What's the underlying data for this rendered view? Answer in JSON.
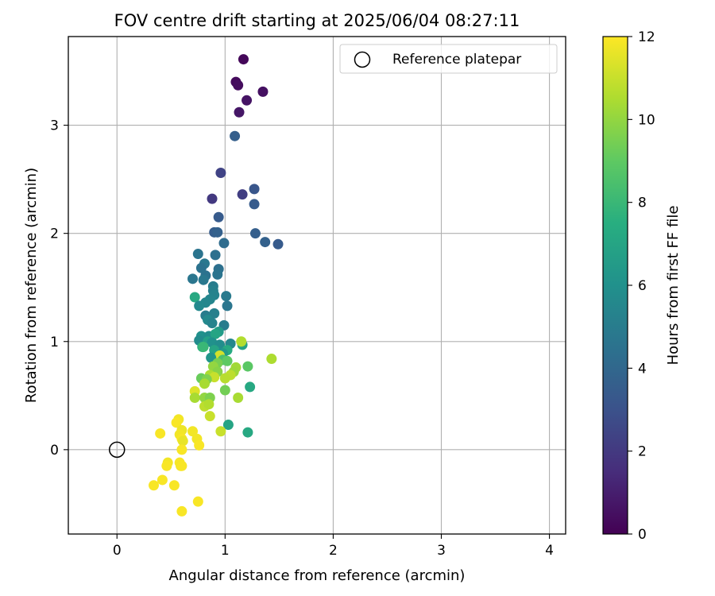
{
  "chart_data": {
    "type": "scatter",
    "title": "FOV centre drift starting at 2025/06/04 08:27:11",
    "xlabel": "Angular distance from reference (arcmin)",
    "ylabel": "Rotation from reference (arcmin)",
    "xlim": [
      -0.45,
      4.15
    ],
    "ylim": [
      -0.78,
      3.82
    ],
    "xticks": [
      0,
      1,
      2,
      3,
      4
    ],
    "yticks": [
      0,
      1,
      2,
      3
    ],
    "grid": true,
    "legend": {
      "position": "top-right",
      "entries": [
        "Reference platepar"
      ]
    },
    "reference_point": {
      "label": "Reference platepar",
      "x": 0,
      "y": 0
    },
    "colorbar": {
      "label": "Hours from first FF file",
      "colormap": "viridis",
      "min": 0,
      "max": 12,
      "ticks": [
        0,
        2,
        4,
        6,
        8,
        10,
        12
      ]
    },
    "points": [
      {
        "x": 1.17,
        "y": 3.61,
        "h": 0.2
      },
      {
        "x": 1.1,
        "y": 3.4,
        "h": 0.3
      },
      {
        "x": 1.12,
        "y": 3.37,
        "h": 0.4
      },
      {
        "x": 1.35,
        "y": 3.31,
        "h": 0.5
      },
      {
        "x": 1.2,
        "y": 3.23,
        "h": 0.6
      },
      {
        "x": 1.13,
        "y": 3.12,
        "h": 0.7
      },
      {
        "x": 1.09,
        "y": 2.9,
        "h": 3.6
      },
      {
        "x": 0.96,
        "y": 2.56,
        "h": 2.4
      },
      {
        "x": 1.27,
        "y": 2.41,
        "h": 3.2
      },
      {
        "x": 1.16,
        "y": 2.36,
        "h": 2.2
      },
      {
        "x": 0.88,
        "y": 2.32,
        "h": 2.0
      },
      {
        "x": 1.27,
        "y": 2.27,
        "h": 3.4
      },
      {
        "x": 0.94,
        "y": 2.15,
        "h": 3.4
      },
      {
        "x": 0.9,
        "y": 2.01,
        "h": 3.5
      },
      {
        "x": 0.93,
        "y": 2.01,
        "h": 3.7
      },
      {
        "x": 1.28,
        "y": 2.0,
        "h": 3.6
      },
      {
        "x": 1.37,
        "y": 1.92,
        "h": 3.7
      },
      {
        "x": 1.49,
        "y": 1.9,
        "h": 3.4
      },
      {
        "x": 0.99,
        "y": 1.91,
        "h": 4.2
      },
      {
        "x": 0.75,
        "y": 1.81,
        "h": 4.6
      },
      {
        "x": 0.91,
        "y": 1.8,
        "h": 4.4
      },
      {
        "x": 0.81,
        "y": 1.72,
        "h": 4.8
      },
      {
        "x": 0.78,
        "y": 1.68,
        "h": 4.5
      },
      {
        "x": 0.94,
        "y": 1.67,
        "h": 4.4
      },
      {
        "x": 0.82,
        "y": 1.61,
        "h": 4.5
      },
      {
        "x": 0.93,
        "y": 1.62,
        "h": 4.6
      },
      {
        "x": 0.7,
        "y": 1.58,
        "h": 4.7
      },
      {
        "x": 0.8,
        "y": 1.57,
        "h": 4.8
      },
      {
        "x": 0.89,
        "y": 1.51,
        "h": 5.0
      },
      {
        "x": 0.89,
        "y": 1.47,
        "h": 5.2
      },
      {
        "x": 0.72,
        "y": 1.41,
        "h": 7.2
      },
      {
        "x": 0.9,
        "y": 1.43,
        "h": 5.3
      },
      {
        "x": 1.01,
        "y": 1.42,
        "h": 4.9
      },
      {
        "x": 0.86,
        "y": 1.39,
        "h": 5.4
      },
      {
        "x": 0.82,
        "y": 1.36,
        "h": 5.5
      },
      {
        "x": 0.76,
        "y": 1.33,
        "h": 5.6
      },
      {
        "x": 1.02,
        "y": 1.33,
        "h": 4.7
      },
      {
        "x": 0.82,
        "y": 1.24,
        "h": 5.0
      },
      {
        "x": 0.9,
        "y": 1.26,
        "h": 5.2
      },
      {
        "x": 0.84,
        "y": 1.2,
        "h": 5.6
      },
      {
        "x": 0.88,
        "y": 1.17,
        "h": 5.3
      },
      {
        "x": 0.99,
        "y": 1.15,
        "h": 5.0
      },
      {
        "x": 0.78,
        "y": 1.05,
        "h": 6.0
      },
      {
        "x": 0.85,
        "y": 1.05,
        "h": 5.8
      },
      {
        "x": 0.94,
        "y": 1.09,
        "h": 6.5
      },
      {
        "x": 0.91,
        "y": 1.07,
        "h": 7.0
      },
      {
        "x": 0.76,
        "y": 1.01,
        "h": 5.7
      },
      {
        "x": 0.84,
        "y": 1.0,
        "h": 6.8
      },
      {
        "x": 0.88,
        "y": 0.99,
        "h": 6.0
      },
      {
        "x": 0.95,
        "y": 0.97,
        "h": 5.8
      },
      {
        "x": 1.05,
        "y": 0.98,
        "h": 5.5
      },
      {
        "x": 1.16,
        "y": 0.97,
        "h": 6.9
      },
      {
        "x": 0.79,
        "y": 0.95,
        "h": 7.6
      },
      {
        "x": 0.8,
        "y": 0.95,
        "h": 8.0
      },
      {
        "x": 0.9,
        "y": 0.92,
        "h": 7.0
      },
      {
        "x": 1.02,
        "y": 0.92,
        "h": 7.3
      },
      {
        "x": 0.98,
        "y": 0.89,
        "h": 6.4
      },
      {
        "x": 1.15,
        "y": 1.0,
        "h": 10.6
      },
      {
        "x": 0.95,
        "y": 0.87,
        "h": 11.2
      },
      {
        "x": 0.87,
        "y": 0.85,
        "h": 6.2
      },
      {
        "x": 1.43,
        "y": 0.84,
        "h": 10.5
      },
      {
        "x": 0.98,
        "y": 0.83,
        "h": 8.5
      },
      {
        "x": 1.02,
        "y": 0.82,
        "h": 9.0
      },
      {
        "x": 0.93,
        "y": 0.8,
        "h": 9.5
      },
      {
        "x": 0.89,
        "y": 0.77,
        "h": 10.0
      },
      {
        "x": 1.21,
        "y": 0.77,
        "h": 8.9
      },
      {
        "x": 1.1,
        "y": 0.76,
        "h": 10.3
      },
      {
        "x": 1.08,
        "y": 0.72,
        "h": 10.2
      },
      {
        "x": 0.93,
        "y": 0.72,
        "h": 9.8
      },
      {
        "x": 0.86,
        "y": 0.69,
        "h": 10.5
      },
      {
        "x": 1.05,
        "y": 0.69,
        "h": 10.8
      },
      {
        "x": 0.9,
        "y": 0.67,
        "h": 11.0
      },
      {
        "x": 0.78,
        "y": 0.66,
        "h": 9.2
      },
      {
        "x": 1.0,
        "y": 0.66,
        "h": 10.7
      },
      {
        "x": 0.83,
        "y": 0.65,
        "h": 9.6
      },
      {
        "x": 0.81,
        "y": 0.61,
        "h": 10.4
      },
      {
        "x": 1.23,
        "y": 0.58,
        "h": 7.2
      },
      {
        "x": 1.0,
        "y": 0.55,
        "h": 9.4
      },
      {
        "x": 0.72,
        "y": 0.54,
        "h": 11.4
      },
      {
        "x": 0.72,
        "y": 0.48,
        "h": 10.4
      },
      {
        "x": 0.81,
        "y": 0.48,
        "h": 10.0
      },
      {
        "x": 0.86,
        "y": 0.48,
        "h": 9.6
      },
      {
        "x": 1.12,
        "y": 0.48,
        "h": 10.4
      },
      {
        "x": 0.81,
        "y": 0.4,
        "h": 10.8
      },
      {
        "x": 0.85,
        "y": 0.42,
        "h": 10.6
      },
      {
        "x": 0.86,
        "y": 0.31,
        "h": 11.0
      },
      {
        "x": 0.57,
        "y": 0.28,
        "h": 11.8
      },
      {
        "x": 0.55,
        "y": 0.25,
        "h": 11.9
      },
      {
        "x": 1.03,
        "y": 0.23,
        "h": 7.0
      },
      {
        "x": 1.21,
        "y": 0.16,
        "h": 7.2
      },
      {
        "x": 0.96,
        "y": 0.17,
        "h": 11.0
      },
      {
        "x": 0.6,
        "y": 0.18,
        "h": 11.7
      },
      {
        "x": 0.7,
        "y": 0.17,
        "h": 11.8
      },
      {
        "x": 0.4,
        "y": 0.15,
        "h": 11.9
      },
      {
        "x": 0.58,
        "y": 0.14,
        "h": 11.8
      },
      {
        "x": 0.6,
        "y": 0.1,
        "h": 11.9
      },
      {
        "x": 0.61,
        "y": 0.08,
        "h": 11.6
      },
      {
        "x": 0.74,
        "y": 0.1,
        "h": 11.8
      },
      {
        "x": 0.76,
        "y": 0.04,
        "h": 11.9
      },
      {
        "x": 0.6,
        "y": 0.0,
        "h": 11.9
      },
      {
        "x": 0.47,
        "y": -0.12,
        "h": 11.8
      },
      {
        "x": 0.46,
        "y": -0.15,
        "h": 11.9
      },
      {
        "x": 0.58,
        "y": -0.12,
        "h": 11.9
      },
      {
        "x": 0.59,
        "y": -0.15,
        "h": 11.8
      },
      {
        "x": 0.6,
        "y": -0.15,
        "h": 11.9
      },
      {
        "x": 0.42,
        "y": -0.28,
        "h": 11.9
      },
      {
        "x": 0.34,
        "y": -0.33,
        "h": 11.9
      },
      {
        "x": 0.53,
        "y": -0.33,
        "h": 11.9
      },
      {
        "x": 0.75,
        "y": -0.48,
        "h": 11.9
      },
      {
        "x": 0.6,
        "y": -0.57,
        "h": 11.9
      }
    ]
  }
}
